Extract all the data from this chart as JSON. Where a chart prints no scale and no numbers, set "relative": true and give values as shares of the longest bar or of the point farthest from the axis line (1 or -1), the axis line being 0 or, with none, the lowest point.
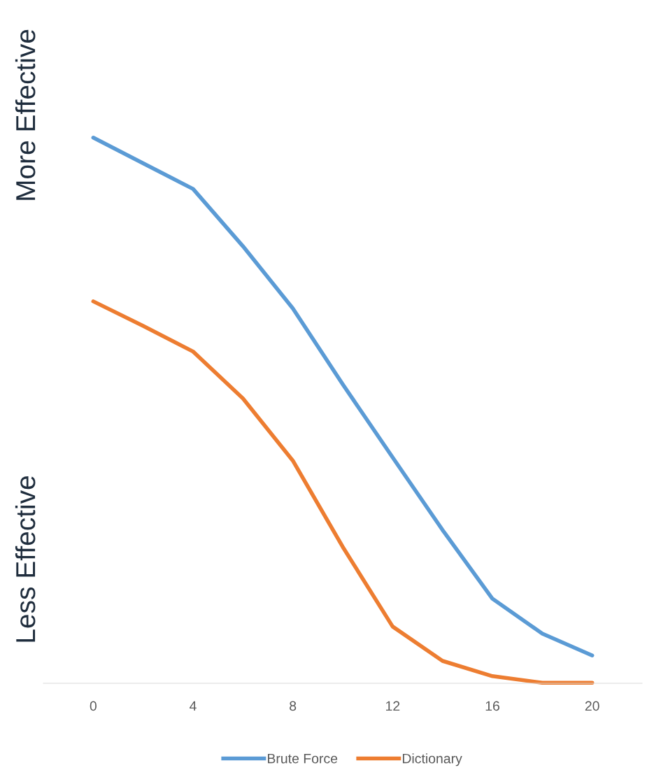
{
  "chart_data": {
    "type": "line",
    "relative": true,
    "x": [
      0,
      2,
      4,
      6,
      8,
      10,
      12,
      14,
      16,
      18,
      20
    ],
    "xlim": [
      -2,
      22
    ],
    "xticks": [
      0,
      4,
      8,
      12,
      16,
      20
    ],
    "series": [
      {
        "name": "Brute Force",
        "color": "#5b9bd5",
        "values": [
          1,
          0.953,
          0.906,
          0.801,
          0.687,
          0.548,
          0.414,
          0.281,
          0.155,
          0.091,
          0.051
        ]
      },
      {
        "name": "Dictionary",
        "color": "#ed7d31",
        "values": [
          0.7,
          0.655,
          0.608,
          0.522,
          0.408,
          0.25,
          0.104,
          0.041,
          0.013,
          0.001,
          0.001
        ]
      }
    ],
    "annotations": [
      "More Effective",
      "Less Effective"
    ],
    "legend": "bottom",
    "grid": false,
    "marker": "none",
    "line_style": "solid"
  }
}
